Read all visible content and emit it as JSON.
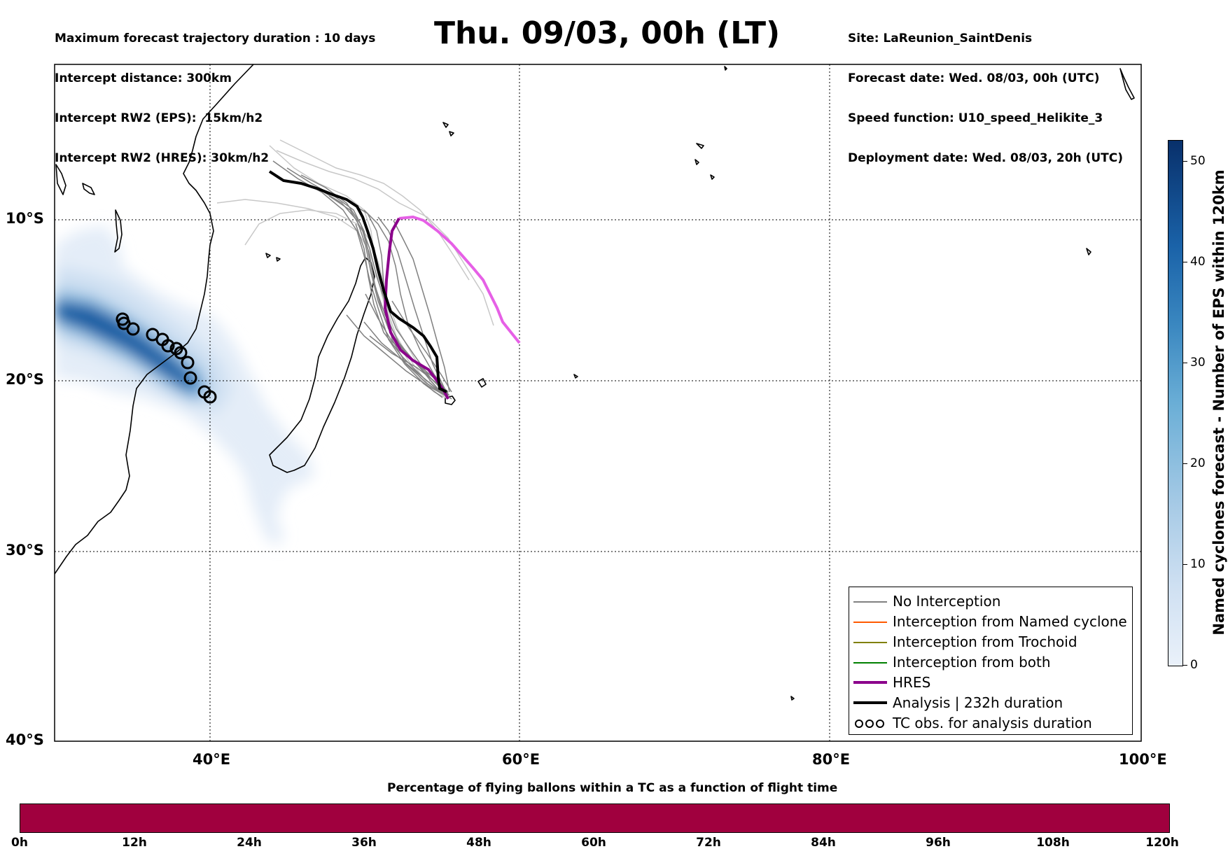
{
  "header": {
    "info_left": [
      "Maximum forecast trajectory duration : 10 days",
      "Intercept distance: 300km",
      "Intercept RW2 (EPS):  15km/h2",
      "Intercept RW2 (HRES): 30km/h2"
    ],
    "title": "Thu. 09/03, 00h (LT)",
    "info_right": [
      "Site: LaReunion_SaintDenis",
      "Forecast date: Wed. 08/03, 00h (UTC)",
      "Speed function: U10_speed_Helikite_3",
      "Deployment date: Wed. 08/03, 20h (UTC)"
    ]
  },
  "map": {
    "lat_labels": [
      "10°S",
      "20°S",
      "30°S",
      "40°S"
    ],
    "lon_labels": [
      "40°E",
      "60°E",
      "80°E",
      "100°E"
    ]
  },
  "legend": {
    "items": [
      {
        "label": "No Interception",
        "color": "#808080"
      },
      {
        "label": "Interception from Named cyclone",
        "color": "#ff5a00"
      },
      {
        "label": "Interception from Trochoid",
        "color": "#808000"
      },
      {
        "label": "Interception from both",
        "color": "#008000"
      },
      {
        "label": "HRES",
        "color": "#8b008b"
      },
      {
        "label": "Analysis | 232h duration",
        "color": "#000000"
      },
      {
        "label": "TC obs. for analysis duration",
        "icon": "cyclone-symbol-icon"
      }
    ]
  },
  "colorbar_vertical": {
    "label": "Named cyclones forecast - Number of EPS within 120km",
    "ticks": [
      "0",
      "10",
      "20",
      "30",
      "40",
      "50"
    ]
  },
  "colorbar_horizontal": {
    "title": "Percentage of flying ballons within a TC as a function of flight time",
    "ticks": [
      "0h",
      "12h",
      "24h",
      "36h",
      "48h",
      "60h",
      "72h",
      "84h",
      "96h",
      "108h",
      "120h"
    ],
    "color": "#a0003e"
  }
}
